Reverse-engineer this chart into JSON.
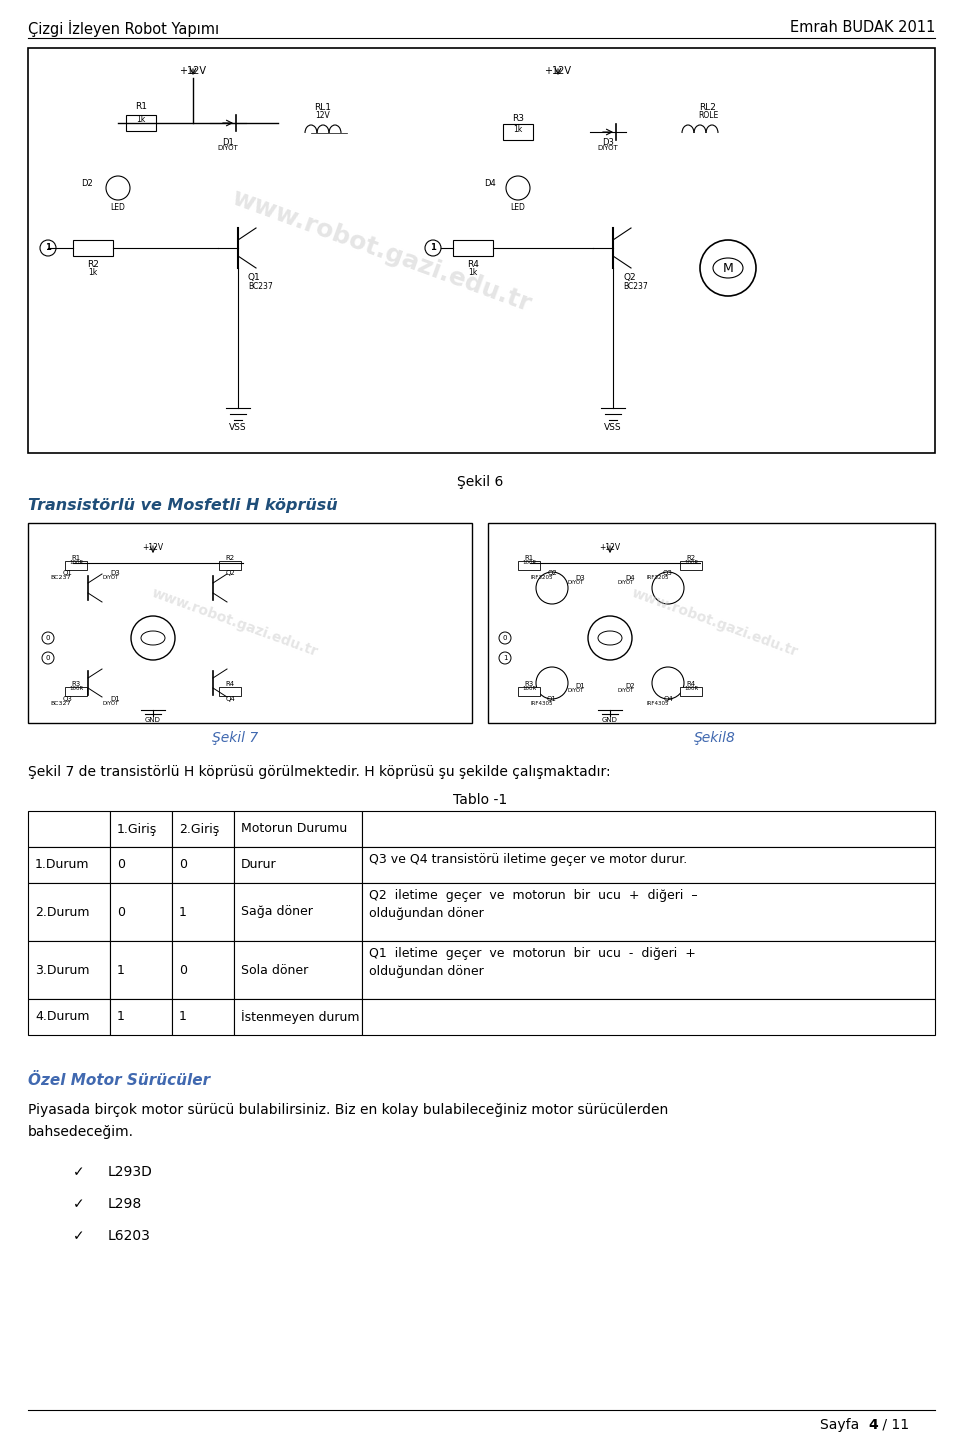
{
  "header_left": "Çizgi İzleyen Robot Yapımı",
  "header_right": "Emrah BUDAK 2011",
  "section_title": "Transistörlü ve Mosfetli H köprüsü",
  "sekil6_label": "Şekil 6",
  "sekil7_label": "Şekil 7",
  "sekil8_label": "Şekil8",
  "desc_text": "Şekil 7 de transistörlü H köprüsü görülmektedir. H köprüsü şu şekilde çalışmaktadır:",
  "table_title": "Tablo -1",
  "table_headers": [
    "",
    "1.Giriş",
    "2.Giriş",
    "Motorun Durumu",
    ""
  ],
  "table_rows": [
    [
      "1.Durum",
      "0",
      "0",
      "Durur",
      "Q3 ve Q4 transistörü iletime geçer ve motor durur."
    ],
    [
      "2.Durum",
      "0",
      "1",
      "Sağa döner",
      "Q2  iletime  geçer  ve  motorun  bir  ucu  +  diğeri  –\nolduğundan döner"
    ],
    [
      "3.Durum",
      "1",
      "0",
      "Sola döner",
      "Q1  iletime  geçer  ve  motorun  bir  ucu  -  diğeri  +\nolduğundan döner"
    ],
    [
      "4.Durum",
      "1",
      "1",
      "İstenmeyen durum",
      ""
    ]
  ],
  "ozel_title": "Özel Motor Sürücüler",
  "ozel_line1": "Piyasada birçok motor sürücü bulabilirsiniz. Biz en kolay bulabileceğiniz motor sürücülerden",
  "ozel_line2": "bahsedeceğim.",
  "bullet_items": [
    "L293D",
    "L298",
    "L6203"
  ],
  "bg_color": "#ffffff",
  "text_color": "#000000",
  "blue_color": "#4169B0",
  "title_blue": "#1F4E79"
}
